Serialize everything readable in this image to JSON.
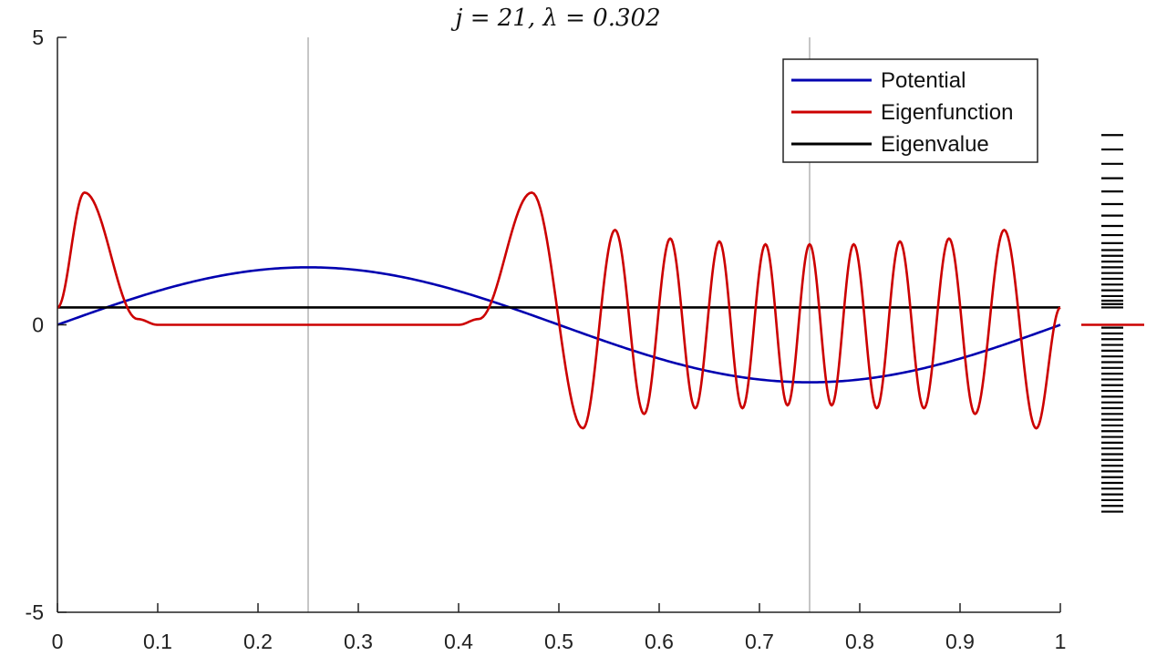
{
  "chart_data": {
    "type": "line",
    "title": "j = 21, λ = 0.302",
    "xlim": [
      0,
      1
    ],
    "ylim": [
      -5,
      5
    ],
    "x_ticks": [
      "0",
      "0.1",
      "0.2",
      "0.3",
      "0.4",
      "0.5",
      "0.6",
      "0.7",
      "0.8",
      "0.9",
      "1"
    ],
    "y_ticks": [
      "5",
      "0",
      "-5"
    ],
    "vertical_reference_lines": [
      0.25,
      0.75
    ],
    "legend_position": "top-right",
    "series": [
      {
        "name": "Potential",
        "color": "#0000b0",
        "x": [
          0,
          0.05,
          0.1,
          0.15,
          0.2,
          0.25,
          0.3,
          0.35,
          0.4,
          0.45,
          0.5,
          0.55,
          0.6,
          0.65,
          0.7,
          0.75,
          0.8,
          0.85,
          0.9,
          0.95,
          1
        ],
        "y": [
          0,
          0.31,
          0.59,
          0.81,
          0.95,
          1.0,
          0.95,
          0.81,
          0.59,
          0.31,
          0,
          -0.31,
          -0.59,
          -0.81,
          -0.95,
          -1.0,
          -0.95,
          -0.81,
          -0.59,
          -0.31,
          0
        ]
      },
      {
        "name": "Eigenfunction",
        "color": "#cc0000",
        "peaks": [
          [
            0,
            0.3
          ],
          [
            0.027,
            2.3
          ],
          [
            0.08,
            0.1
          ],
          [
            0.1,
            0.0
          ],
          [
            0.25,
            0.0
          ],
          [
            0.4,
            0.0
          ],
          [
            0.42,
            0.1
          ],
          [
            0.473,
            2.3
          ],
          [
            0.524,
            -1.8
          ],
          [
            0.556,
            1.65
          ],
          [
            0.585,
            -1.55
          ],
          [
            0.611,
            1.5
          ],
          [
            0.636,
            -1.45
          ],
          [
            0.66,
            1.45
          ],
          [
            0.683,
            -1.45
          ],
          [
            0.706,
            1.4
          ],
          [
            0.728,
            -1.4
          ],
          [
            0.75,
            1.4
          ],
          [
            0.772,
            -1.4
          ],
          [
            0.794,
            1.4
          ],
          [
            0.817,
            -1.45
          ],
          [
            0.84,
            1.45
          ],
          [
            0.864,
            -1.45
          ],
          [
            0.889,
            1.5
          ],
          [
            0.915,
            -1.55
          ],
          [
            0.944,
            1.65
          ],
          [
            0.976,
            -1.8
          ],
          [
            1.0,
            0.3
          ]
        ]
      },
      {
        "name": "Eigenvalue",
        "color": "#000000",
        "x": [
          0,
          1
        ],
        "y": [
          0.302,
          0.302
        ]
      }
    ]
  },
  "spectrum": {
    "marker_value": 0,
    "levels": [
      3.3,
      3.05,
      2.8,
      2.55,
      2.32,
      2.1,
      1.9,
      1.72,
      1.56,
      1.42,
      1.3,
      1.2,
      1.1,
      1.0,
      0.9,
      0.8,
      0.7,
      0.6,
      0.5,
      0.42,
      0.36,
      0.302,
      -0.05,
      -0.15,
      -0.25,
      -0.35,
      -0.45,
      -0.55,
      -0.65,
      -0.75,
      -0.85,
      -0.95,
      -1.05,
      -1.15,
      -1.25,
      -1.35,
      -1.45,
      -1.55,
      -1.65,
      -1.75,
      -1.85,
      -1.95,
      -2.05,
      -2.15,
      -2.25,
      -2.35,
      -2.45,
      -2.55,
      -2.65,
      -2.75,
      -2.85,
      -2.95,
      -3.05,
      -3.15,
      -3.25
    ]
  }
}
